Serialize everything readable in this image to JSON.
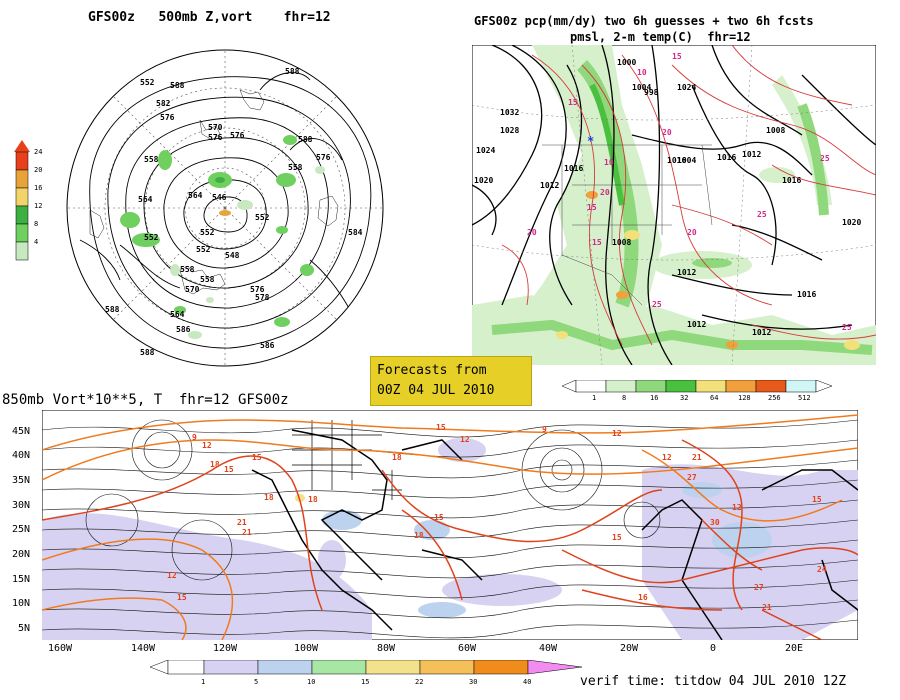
{
  "polar_panel": {
    "title": "GFS00z   500mb Z,vort    fhr=12",
    "colorbar_ticks": [
      "24",
      "20",
      "16",
      "12",
      "8",
      "4"
    ],
    "colorbar_colors": [
      "#ffffff",
      "#c8e8c0",
      "#6fcf5f",
      "#3cb043",
      "#f2d46b",
      "#e8a33b",
      "#e8401c"
    ],
    "contour_labels": [
      "552",
      "588",
      "588",
      "582",
      "576",
      "570",
      "576",
      "558",
      "576",
      "588",
      "576",
      "564",
      "552",
      "546",
      "552",
      "558",
      "558",
      "552",
      "564",
      "576",
      "584",
      "548",
      "552",
      "578",
      "570",
      "564",
      "586",
      "588",
      "586",
      "588",
      "558"
    ]
  },
  "precip_panel": {
    "title_line1": "GFS00z pcp(mm/dy) two 6h guesses + two 6h fcsts",
    "title_line2": "pmsl, 2-m temp(C)  fhr=12",
    "colorbar_ticks": [
      "1",
      "8",
      "16",
      "32",
      "64",
      "128",
      "256",
      "512"
    ],
    "colorbar_colors": [
      "#ffffff",
      "#d6f0cc",
      "#8fd87c",
      "#4bbf3e",
      "#f2e07a",
      "#f2a03b",
      "#e85a1c",
      "#c42a10",
      "#d0f6f6"
    ],
    "isobar_labels": [
      "1032",
      "1028",
      "1024",
      "1020",
      "1016",
      "1012",
      "1008",
      "1004",
      "1000",
      "1016",
      "1012",
      "1008",
      "1012",
      "1016",
      "1020",
      "1024",
      "1016",
      "1012",
      "1012",
      "1016",
      "1004",
      "998"
    ],
    "temp_labels": [
      "10",
      "15",
      "20",
      "25",
      "15",
      "20",
      "25",
      "10",
      "15",
      "20",
      "25",
      "15",
      "25",
      "20"
    ]
  },
  "forecast_box": {
    "line1": "Forecasts from",
    "line2": "00Z 04 JUL 2010"
  },
  "vort_panel": {
    "title": "850mb Vort*10**5, T  fhr=12 GFS00z",
    "lat_ticks": [
      "45N",
      "40N",
      "35N",
      "30N",
      "25N",
      "20N",
      "15N",
      "10N",
      "5N"
    ],
    "lon_ticks": [
      "160W",
      "140W",
      "120W",
      "100W",
      "80W",
      "60W",
      "40W",
      "20W",
      "0",
      "20E"
    ],
    "temp_labels": [
      "9",
      "12",
      "15",
      "18",
      "15",
      "18",
      "12",
      "15",
      "21",
      "18",
      "15",
      "12",
      "9",
      "12",
      "21",
      "18",
      "15",
      "15",
      "12",
      "21",
      "27",
      "30",
      "27",
      "24",
      "21",
      "16",
      "18",
      "15",
      "12"
    ],
    "colorbar_ticks": [
      "1",
      "5",
      "10",
      "15",
      "22",
      "30",
      "40"
    ],
    "colorbar_colors": [
      "#ffffff",
      "#d8d2f2",
      "#bcd2ee",
      "#a8e6a3",
      "#f2e28c",
      "#f5c05a",
      "#f08c1c",
      "#f28cf0"
    ]
  },
  "verif_text": "verif time: titdow 04 JUL 2010 12Z"
}
